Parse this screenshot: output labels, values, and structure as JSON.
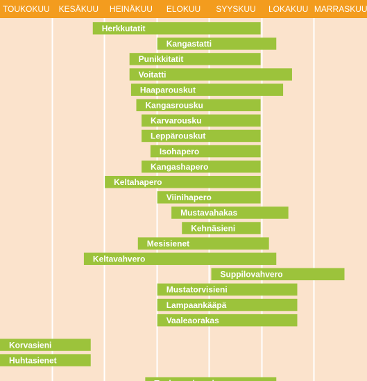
{
  "chart_data": {
    "type": "bar",
    "orientation": "horizontal-range",
    "months": [
      "TOUKOKUU",
      "KESÄKUU",
      "HEINÄKUU",
      "ELOKUU",
      "SYYSKUU",
      "LOKAKUU",
      "MARRASKUU"
    ],
    "x_unit": "months since start of TOUKOKUU",
    "xlim": [
      0,
      7
    ],
    "grid": true,
    "colors": {
      "header": "#f39c1e",
      "background": "#fbe3cc",
      "bar": "#9cc33b",
      "grid": "#ffffff",
      "text": "#ffffff"
    },
    "series": [
      {
        "name": "Herkkutatit",
        "start": 1.77,
        "end": 4.97
      },
      {
        "name": "Kangastatti",
        "start": 3.0,
        "end": 5.27
      },
      {
        "name": "Punikkitatit",
        "start": 2.47,
        "end": 4.97
      },
      {
        "name": "Voitatti",
        "start": 2.47,
        "end": 5.57
      },
      {
        "name": "Haaparouskut",
        "start": 2.5,
        "end": 5.4
      },
      {
        "name": "Kangasrousku",
        "start": 2.6,
        "end": 4.97
      },
      {
        "name": "Karvarousku",
        "start": 2.7,
        "end": 4.97
      },
      {
        "name": "Leppärouskut",
        "start": 2.7,
        "end": 4.97
      },
      {
        "name": "Isohapero",
        "start": 2.87,
        "end": 4.97
      },
      {
        "name": "Kangashapero",
        "start": 2.7,
        "end": 4.97
      },
      {
        "name": "Keltahapero",
        "start": 2.0,
        "end": 4.97
      },
      {
        "name": "Viinihapero",
        "start": 3.0,
        "end": 4.97
      },
      {
        "name": "Mustavahakas",
        "start": 3.27,
        "end": 5.5
      },
      {
        "name": "Kehnäsieni",
        "start": 3.47,
        "end": 4.97
      },
      {
        "name": "Mesisienet",
        "start": 2.63,
        "end": 5.13
      },
      {
        "name": "Keltavahvero",
        "start": 1.6,
        "end": 5.27
      },
      {
        "name": "Suppilovahvero",
        "start": 4.03,
        "end": 6.57
      },
      {
        "name": "Mustatorvisieni",
        "start": 3.0,
        "end": 5.67
      },
      {
        "name": "Lampaankääpä",
        "start": 3.0,
        "end": 5.67
      },
      {
        "name": "Vaaleaorakas",
        "start": 3.0,
        "end": 5.67
      },
      {
        "name": "Korvasieni",
        "start": 0.0,
        "end": 1.73
      },
      {
        "name": "Huhtasienet",
        "start": 0.0,
        "end": 1.73
      },
      {
        "name": "Tuoksuvalmuska",
        "start": 2.77,
        "end": 5.27
      }
    ]
  }
}
